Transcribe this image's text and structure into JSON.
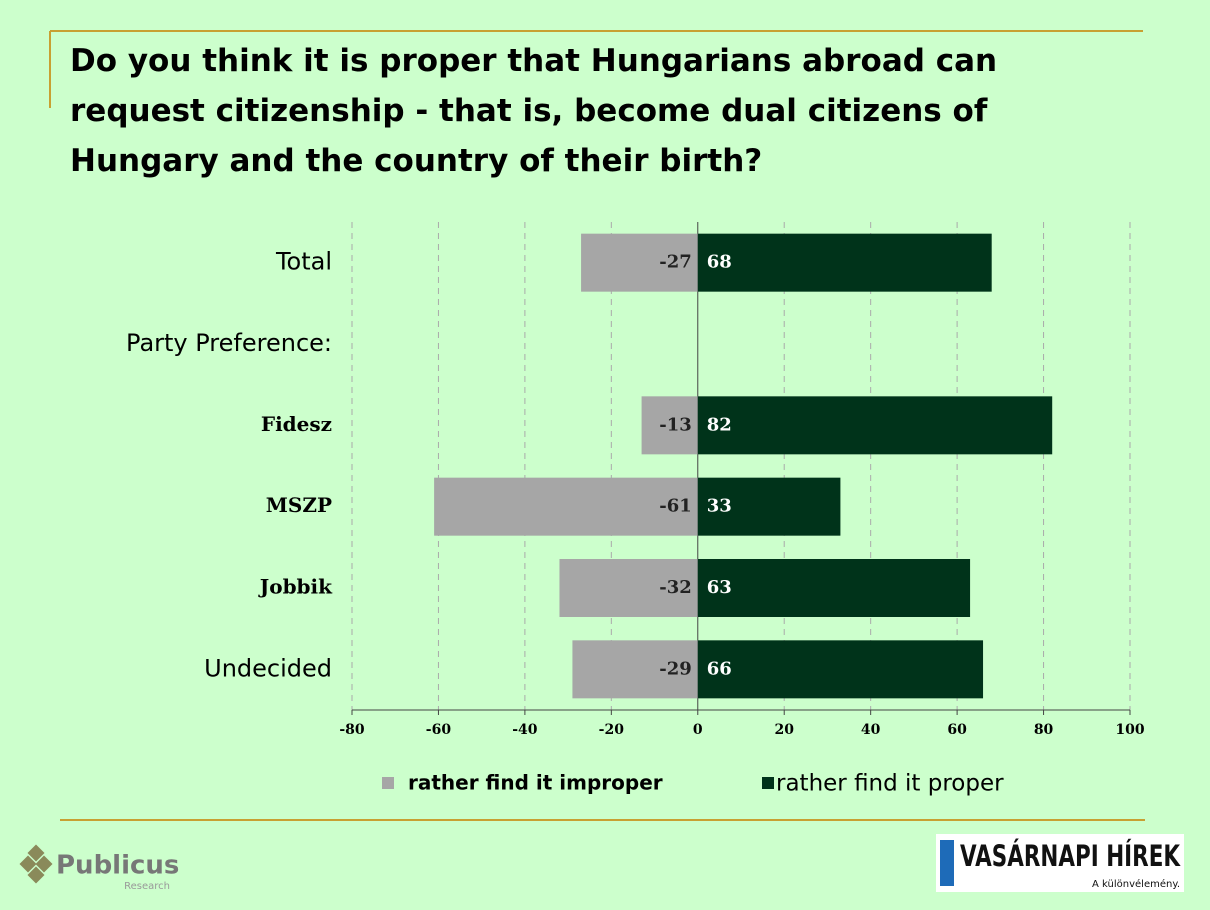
{
  "chart_data": {
    "type": "bar",
    "title": "Do you think it is proper that Hungarians abroad can request citizenship - that is, become dual citizens of Hungary and the country of their birth?",
    "categories": [
      "Total",
      "Party Preference:",
      "Fidesz",
      "MSZP",
      "Jobbik",
      "Undecided"
    ],
    "series": [
      {
        "name": "rather find it improper",
        "color": "#a6a6a6",
        "values": [
          -27,
          null,
          -13,
          -61,
          -32,
          -29
        ]
      },
      {
        "name": "rather find it proper",
        "color": "#00331a",
        "values": [
          68,
          null,
          82,
          33,
          63,
          66
        ]
      }
    ],
    "xlim": [
      -80,
      100
    ],
    "xticks": [
      -80,
      -60,
      -40,
      -20,
      0,
      20,
      40,
      60,
      80,
      100
    ],
    "grid": true
  },
  "footer": {
    "left_logo": "Publicus",
    "left_logo_sub": "Research",
    "right_logo": "VASÁRNAPI HÍREK",
    "right_logo_sub": "A különvélemény."
  }
}
